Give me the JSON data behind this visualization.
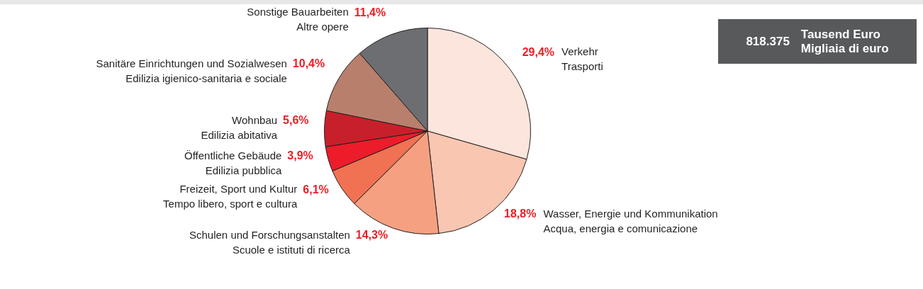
{
  "chart_data": {
    "type": "pie",
    "categories": [
      "Verkehr\nTrasporti",
      "Wasser, Energie und Kommunikation\nAcqua, energia e comunicazione",
      "Schulen und Forschungsanstalten\nScuole e istituti di ricerca",
      "Freizeit, Sport und Kultur\nTempo libero, sport e cultura",
      "Öffentliche Gebäude\nEdilizia pubblica",
      "Wohnbau\nEdilizia abitativa",
      "Sanitäre Einrichtungen und Sozialwesen\nEdilizia igienico-sanitaria e sociale",
      "Sonstige Bauarbeiten\nAltre opere"
    ],
    "values": [
      29.4,
      18.8,
      14.3,
      6.1,
      3.9,
      5.6,
      10.4,
      11.4
    ],
    "value_labels": [
      "29,4%",
      "18,8%",
      "14,3%",
      "6,1%",
      "3,9%",
      "5,6%",
      "10,4%",
      "11,4%"
    ],
    "colors": [
      "#fce5dc",
      "#f9c6b1",
      "#f5a181",
      "#f07252",
      "#ed1c2a",
      "#c8202a",
      "#b8806c",
      "#6d6e71"
    ],
    "annotations": [
      "818.375",
      "Tausend Euro",
      "Migliaia di euro"
    ],
    "legend": false
  }
}
